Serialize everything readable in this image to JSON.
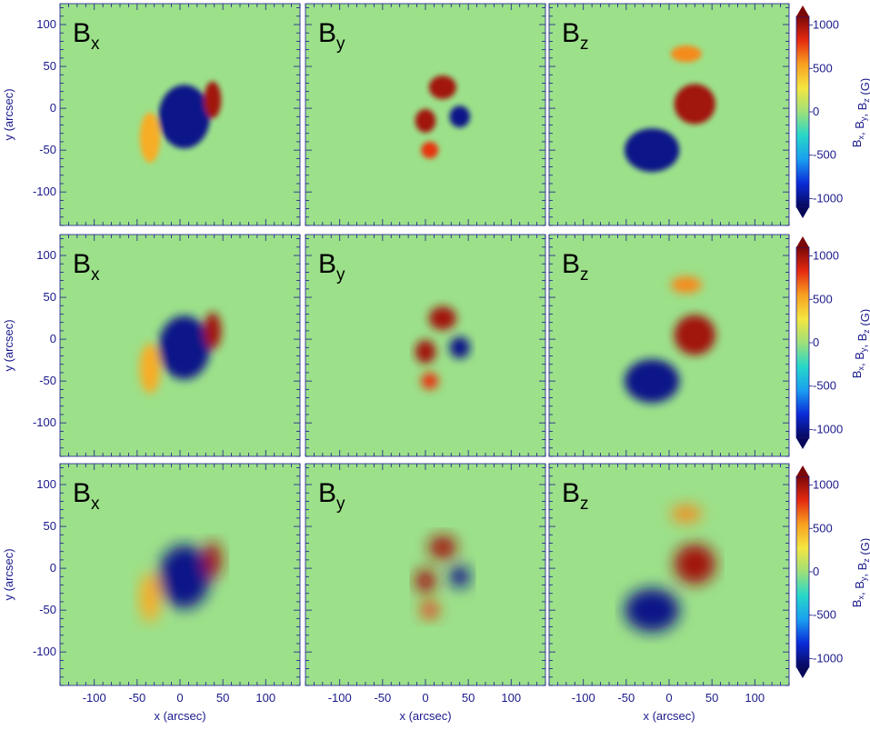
{
  "chart_data": {
    "type": "heatmap",
    "rows": 3,
    "columns": 3,
    "panel_titles": [
      {
        "base": "B",
        "sub": "x"
      },
      {
        "base": "B",
        "sub": "y"
      },
      {
        "base": "B",
        "sub": "z"
      }
    ],
    "xlabel": "x (arcsec)",
    "ylabel": "y (arcsec)",
    "xlim": [
      -140,
      140
    ],
    "ylim": [
      -140,
      125
    ],
    "x_ticks": [
      -100,
      -50,
      0,
      50,
      100
    ],
    "y_ticks": [
      100,
      50,
      0,
      -50,
      -100
    ],
    "colorbar": {
      "label_parts": [
        {
          "base": "B",
          "sub": "x"
        },
        {
          "sep": ", "
        },
        {
          "base": "B",
          "sub": "y"
        },
        {
          "sep": ", "
        },
        {
          "base": "B",
          "sub": "z"
        },
        {
          "sep": " (G)"
        }
      ],
      "ticks": [
        1000,
        500,
        0,
        -500,
        -1000
      ],
      "range": [
        -1100,
        1100
      ],
      "colormap": [
        "#08085a",
        "#0a2bd8",
        "#1a9ff0",
        "#27d8c8",
        "#9ee07a",
        "#f4e640",
        "#f8a020",
        "#e52a10",
        "#7a0808"
      ]
    },
    "background_color": "#9ce08a",
    "rows_smoothing": [
      "none",
      "light",
      "strong"
    ],
    "features": [
      {
        "panel": "Bx",
        "x": 5,
        "y": -10,
        "value": -1000
      },
      {
        "panel": "Bx",
        "x": 38,
        "y": 10,
        "value": 1000
      },
      {
        "panel": "Bx",
        "x": -35,
        "y": -35,
        "value": 500
      },
      {
        "panel": "By",
        "x": 20,
        "y": 25,
        "value": 1000
      },
      {
        "panel": "By",
        "x": 0,
        "y": -15,
        "value": 1000
      },
      {
        "panel": "By",
        "x": 40,
        "y": -10,
        "value": -1000
      },
      {
        "panel": "By",
        "x": 5,
        "y": -50,
        "value": 800
      },
      {
        "panel": "Bz",
        "x": 30,
        "y": 5,
        "value": 1000
      },
      {
        "panel": "Bz",
        "x": -20,
        "y": -50,
        "value": -1000
      },
      {
        "panel": "Bz",
        "x": 20,
        "y": 65,
        "value": 600
      }
    ]
  }
}
